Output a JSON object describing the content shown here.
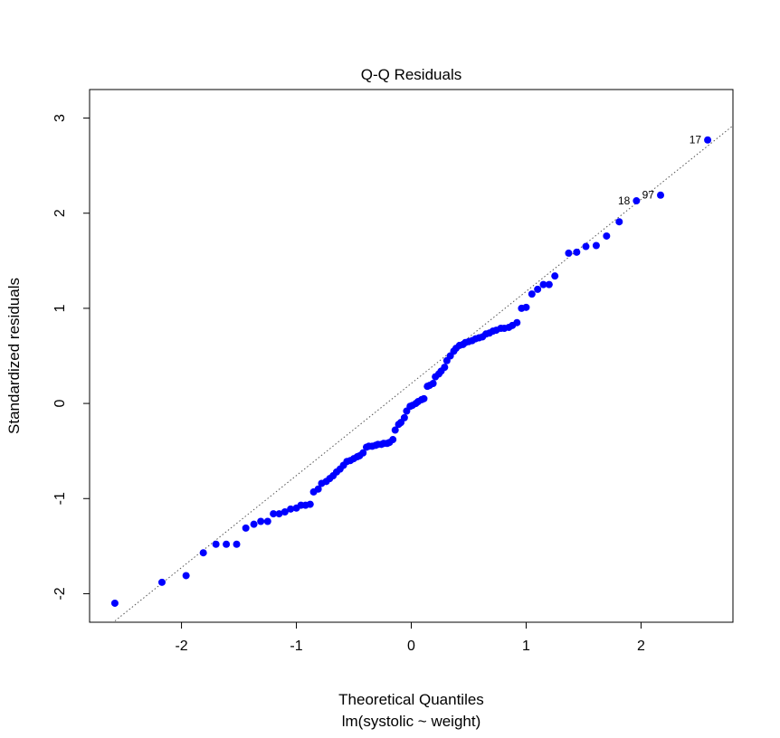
{
  "chart_data": {
    "type": "scatter",
    "title": "Q-Q Residuals",
    "xlabel": "Theoretical Quantiles",
    "xlabel_sub": "lm(systolic ~ weight)",
    "ylabel": "Standardized residuals",
    "xlim": [
      -2.8,
      2.8
    ],
    "ylim": [
      -2.3,
      3.3
    ],
    "xticks": [
      -2,
      -1,
      0,
      1,
      2
    ],
    "yticks": [
      -2,
      -1,
      0,
      1,
      2,
      3
    ],
    "reference_line": {
      "x1": -2.8,
      "y1": -2.5,
      "x2": 2.8,
      "y2": 2.92,
      "style": "dotted"
    },
    "point_color": "#0000ff",
    "points": [
      [
        -2.58,
        -2.1
      ],
      [
        -2.17,
        -1.88
      ],
      [
        -1.96,
        -1.81
      ],
      [
        -1.81,
        -1.57
      ],
      [
        -1.7,
        -1.48
      ],
      [
        -1.61,
        -1.48
      ],
      [
        -1.52,
        -1.48
      ],
      [
        -1.44,
        -1.31
      ],
      [
        -1.37,
        -1.27
      ],
      [
        -1.31,
        -1.24
      ],
      [
        -1.25,
        -1.24
      ],
      [
        -1.2,
        -1.16
      ],
      [
        -1.15,
        -1.16
      ],
      [
        -1.1,
        -1.14
      ],
      [
        -1.05,
        -1.11
      ],
      [
        -1.0,
        -1.1
      ],
      [
        -0.96,
        -1.07
      ],
      [
        -0.92,
        -1.07
      ],
      [
        -0.88,
        -1.06
      ],
      [
        -0.85,
        -0.93
      ],
      [
        -0.81,
        -0.9
      ],
      [
        -0.78,
        -0.84
      ],
      [
        -0.74,
        -0.82
      ],
      [
        -0.71,
        -0.79
      ],
      [
        -0.68,
        -0.76
      ],
      [
        -0.65,
        -0.72
      ],
      [
        -0.62,
        -0.69
      ],
      [
        -0.59,
        -0.65
      ],
      [
        -0.56,
        -0.61
      ],
      [
        -0.53,
        -0.6
      ],
      [
        -0.5,
        -0.58
      ],
      [
        -0.47,
        -0.56
      ],
      [
        -0.45,
        -0.55
      ],
      [
        -0.42,
        -0.52
      ],
      [
        -0.39,
        -0.46
      ],
      [
        -0.37,
        -0.45
      ],
      [
        -0.34,
        -0.45
      ],
      [
        -0.31,
        -0.44
      ],
      [
        -0.29,
        -0.43
      ],
      [
        -0.26,
        -0.43
      ],
      [
        -0.24,
        -0.42
      ],
      [
        -0.21,
        -0.42
      ],
      [
        -0.19,
        -0.41
      ],
      [
        -0.16,
        -0.38
      ],
      [
        -0.14,
        -0.28
      ],
      [
        -0.11,
        -0.22
      ],
      [
        -0.09,
        -0.2
      ],
      [
        -0.06,
        -0.15
      ],
      [
        -0.04,
        -0.08
      ],
      [
        -0.01,
        -0.03
      ],
      [
        0.01,
        -0.02
      ],
      [
        0.04,
        0.0
      ],
      [
        0.06,
        0.02
      ],
      [
        0.09,
        0.04
      ],
      [
        0.11,
        0.05
      ],
      [
        0.14,
        0.18
      ],
      [
        0.16,
        0.19
      ],
      [
        0.19,
        0.21
      ],
      [
        0.21,
        0.28
      ],
      [
        0.24,
        0.31
      ],
      [
        0.26,
        0.34
      ],
      [
        0.29,
        0.38
      ],
      [
        0.31,
        0.45
      ],
      [
        0.34,
        0.5
      ],
      [
        0.37,
        0.55
      ],
      [
        0.39,
        0.58
      ],
      [
        0.42,
        0.61
      ],
      [
        0.45,
        0.62
      ],
      [
        0.47,
        0.64
      ],
      [
        0.5,
        0.65
      ],
      [
        0.53,
        0.66
      ],
      [
        0.56,
        0.68
      ],
      [
        0.59,
        0.69
      ],
      [
        0.62,
        0.7
      ],
      [
        0.65,
        0.73
      ],
      [
        0.68,
        0.74
      ],
      [
        0.71,
        0.76
      ],
      [
        0.74,
        0.77
      ],
      [
        0.78,
        0.79
      ],
      [
        0.81,
        0.79
      ],
      [
        0.85,
        0.8
      ],
      [
        0.88,
        0.82
      ],
      [
        0.92,
        0.85
      ],
      [
        0.96,
        1.0
      ],
      [
        1.0,
        1.01
      ],
      [
        1.05,
        1.15
      ],
      [
        1.1,
        1.2
      ],
      [
        1.15,
        1.25
      ],
      [
        1.2,
        1.25
      ],
      [
        1.25,
        1.34
      ],
      [
        1.37,
        1.58
      ],
      [
        1.44,
        1.59
      ],
      [
        1.52,
        1.65
      ],
      [
        1.61,
        1.66
      ],
      [
        1.7,
        1.76
      ],
      [
        1.81,
        1.91
      ],
      [
        1.96,
        2.13
      ],
      [
        2.17,
        2.19
      ],
      [
        2.58,
        2.77
      ]
    ],
    "labeled_points": [
      {
        "label": "17",
        "x": 2.58,
        "y": 2.77
      },
      {
        "label": "18",
        "x": 1.96,
        "y": 2.13
      },
      {
        "label": "97",
        "x": 2.17,
        "y": 2.19
      }
    ]
  }
}
